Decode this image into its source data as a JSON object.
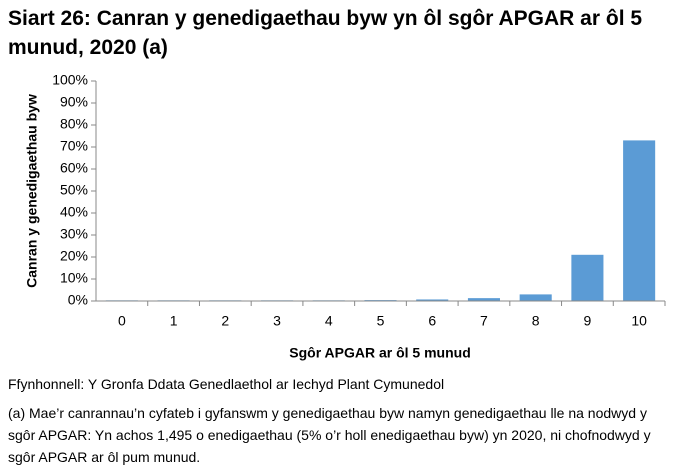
{
  "chart_data": {
    "type": "bar",
    "title": "Siart 26: Canran y genedigaethau byw yn ôl sgôr APGAR ar ôl 5 munud, 2020 (a)",
    "x_label": "Sgôr APGAR ar ôl 5 munud",
    "y_label": "Canran y genedigaethau byw",
    "categories": [
      "0",
      "1",
      "2",
      "3",
      "4",
      "5",
      "6",
      "7",
      "8",
      "9",
      "10"
    ],
    "values": [
      0.3,
      0.3,
      0.3,
      0.3,
      0.3,
      0.4,
      0.7,
      1.3,
      3.0,
      21,
      73
    ],
    "color": "#5b9bd5",
    "ylim": [
      0,
      100
    ],
    "yticks": [
      {
        "value": 0,
        "label": "0%"
      },
      {
        "value": 10,
        "label": "10%"
      },
      {
        "value": 20,
        "label": "20%"
      },
      {
        "value": 30,
        "label": "30%"
      },
      {
        "value": 40,
        "label": "40%"
      },
      {
        "value": 50,
        "label": "50%"
      },
      {
        "value": 60,
        "label": "60%"
      },
      {
        "value": 70,
        "label": "70%"
      },
      {
        "value": 80,
        "label": "80%"
      },
      {
        "value": 90,
        "label": "90%"
      },
      {
        "value": 100,
        "label": "100%"
      }
    ],
    "grid": false,
    "source": "Ffynhonnell: Y Gronfa Ddata Genedlaethol ar Iechyd Plant Cymunedol",
    "note": "(a) Mae’r canrannau’n cyfateb i gyfanswm y genedigaethau byw namyn genedigaethau lle na nodwyd y sgôr APGAR: Yn achos 1,495 o enedigaethau (5% o’r holl enedigaethau byw) yn 2020, ni chofnodwyd y sgôr APGAR ar ôl pum munud."
  }
}
